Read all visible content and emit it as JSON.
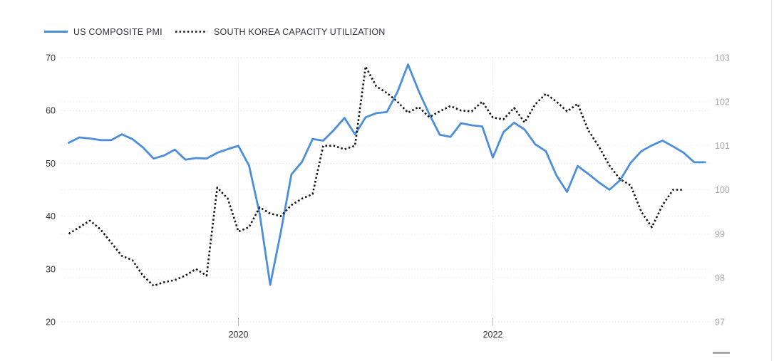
{
  "chart_data": {
    "type": "line",
    "frequency": "monthly",
    "x_start": "2018-09",
    "grid": "dotted",
    "legend_position": "top-left",
    "left_axis": {
      "ticks": [
        70,
        60,
        50,
        40,
        30,
        20
      ],
      "range": [
        20,
        70
      ],
      "text_color": "#333333",
      "grid_color": "#d8d8d8"
    },
    "right_axis": {
      "ticks": [
        103,
        102,
        101,
        100,
        99,
        98,
        97
      ],
      "range": [
        97,
        103
      ],
      "text_color": "#a8a8a8",
      "grid_color": "#e7e7e7"
    },
    "x_axis": {
      "ticks": [
        {
          "label": "2020",
          "month_index": 16
        },
        {
          "label": "2022",
          "month_index": 40
        }
      ],
      "text_color": "#333333",
      "grid_color": "#dcdcdc",
      "tick_color": "#b3b3b3"
    },
    "series": [
      {
        "name": "US COMPOSITE PMI",
        "axis": "left",
        "style": "solid",
        "color": "#4c8edb",
        "start_month_index": 0,
        "values": [
          53.9,
          54.9,
          54.7,
          54.4,
          54.4,
          55.5,
          54.6,
          53.0,
          50.9,
          51.5,
          52.6,
          50.7,
          51.0,
          50.9,
          52.0,
          52.7,
          53.3,
          49.6,
          40.5,
          27.0,
          37.0,
          47.9,
          50.3,
          54.6,
          54.3,
          56.3,
          58.6,
          55.5,
          58.7,
          59.5,
          59.7,
          63.5,
          68.7,
          63.7,
          59.3,
          55.4,
          55.0,
          57.6,
          57.2,
          57.0,
          51.1,
          55.9,
          57.7,
          56.4,
          53.6,
          52.3,
          47.7,
          44.6,
          49.5,
          48.0,
          46.4,
          45.0,
          46.8,
          50.1,
          52.3,
          53.4,
          54.3,
          53.2,
          52.0,
          50.2,
          50.2
        ]
      },
      {
        "name": "SOUTH KOREA CAPACITY UTILIZATION",
        "axis": "right",
        "style": "dotted",
        "color": "#141414",
        "start_month_index": 0,
        "values": [
          99.0,
          99.15,
          99.3,
          99.1,
          98.8,
          98.5,
          98.4,
          98.05,
          97.82,
          97.9,
          97.95,
          98.05,
          98.2,
          98.05,
          100.05,
          99.8,
          99.05,
          99.15,
          99.6,
          99.46,
          99.4,
          99.65,
          99.8,
          99.9,
          101.0,
          101.0,
          100.92,
          101.0,
          102.8,
          102.35,
          102.2,
          102.0,
          101.75,
          101.88,
          101.65,
          101.78,
          101.9,
          101.8,
          101.78,
          102.0,
          101.64,
          101.6,
          101.86,
          101.53,
          101.94,
          102.18,
          102.0,
          101.78,
          101.95,
          101.35,
          100.98,
          100.55,
          100.24,
          100.1,
          99.5,
          99.15,
          99.65,
          100.0,
          100.0
        ]
      }
    ]
  },
  "decorations": {
    "drag_dash_color": "#999999",
    "panel_border_color": "#ebebeb"
  }
}
